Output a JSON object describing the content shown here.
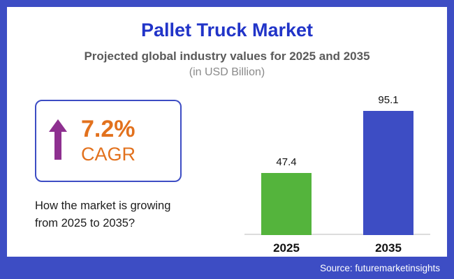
{
  "title": "Pallet Truck Market",
  "subtitle": "Projected global industry values for 2025 and 2035",
  "unit_note": "(in USD Billion)",
  "cagr": {
    "value": "7.2%",
    "label": "CAGR"
  },
  "question": "How the market is growing from 2025 to 2035?",
  "source": "Source: futuremarketinsights",
  "colors": {
    "frame": "#3d4dc4",
    "title": "#2134c8",
    "bar_2025": "#54b43c",
    "bar_2035": "#3d4dc4",
    "cagr_text": "#e2711d",
    "arrow": "#8e3090"
  },
  "chart_data": {
    "type": "bar",
    "categories": [
      "2025",
      "2035"
    ],
    "values": [
      47.4,
      95.1
    ],
    "title": "Pallet Truck Market — Projected global industry values for 2025 and 2035",
    "xlabel": "",
    "ylabel": "USD Billion",
    "ylim": [
      0,
      100
    ],
    "grid": false,
    "legend": false,
    "value_labels": true,
    "bar_colors": [
      "#54b43c",
      "#3d4dc4"
    ]
  }
}
